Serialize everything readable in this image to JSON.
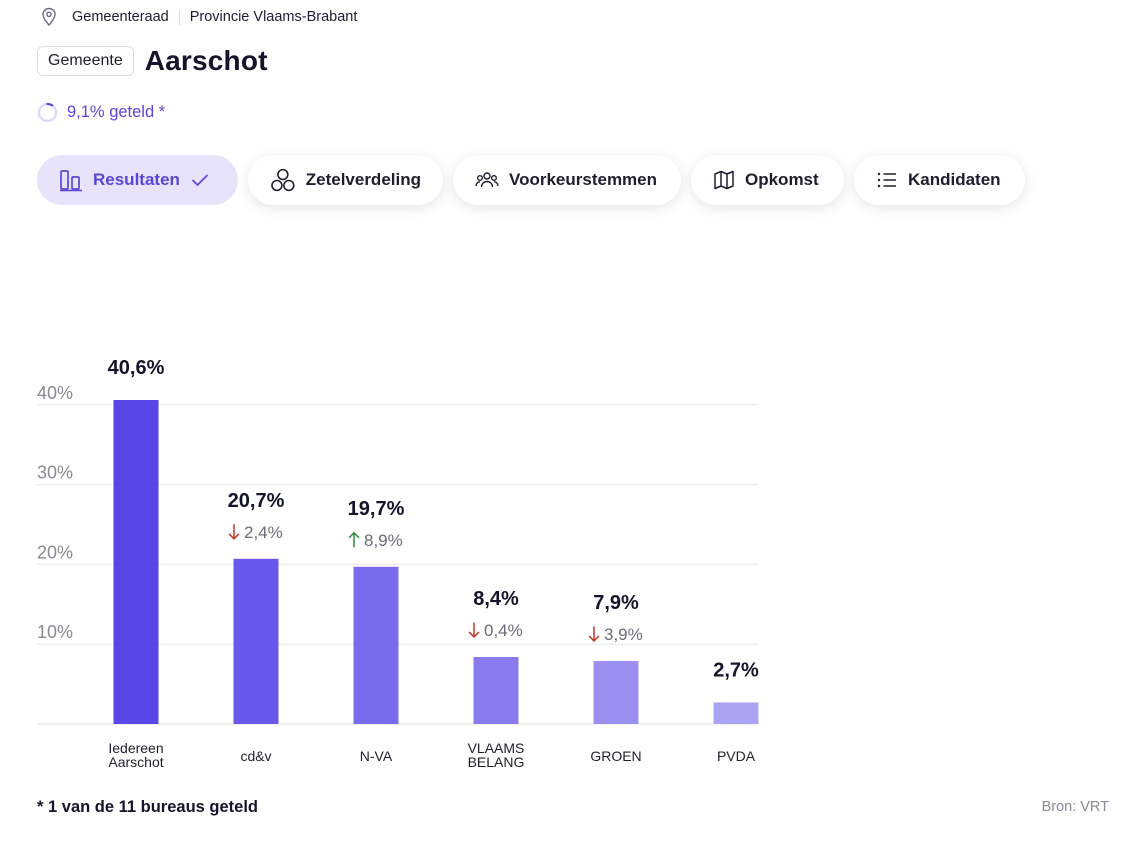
{
  "breadcrumb": {
    "pin_icon": "location-pin-icon",
    "items": [
      "Gemeenteraad",
      "Provincie Vlaams-Brabant"
    ]
  },
  "header": {
    "chip": "Gemeente",
    "title": "Aarschot"
  },
  "progress": {
    "text": "9,1% geteld *",
    "fraction": 0.091
  },
  "tabs": [
    {
      "label": "Resultaten",
      "icon": "bar-chart-icon",
      "active": true
    },
    {
      "label": "Zetelverdeling",
      "icon": "seats-icon",
      "active": false
    },
    {
      "label": "Voorkeurstemmen",
      "icon": "people-icon",
      "active": false
    },
    {
      "label": "Opkomst",
      "icon": "map-icon",
      "active": false
    },
    {
      "label": "Kandidaten",
      "icon": "list-icon",
      "active": false
    }
  ],
  "chart_data": {
    "type": "bar",
    "ylabel": "",
    "xlabel": "",
    "ylim": [
      0,
      40.6
    ],
    "ytick_labels": [
      "10%",
      "20%",
      "30%",
      "40%"
    ],
    "ytick_values": [
      10,
      20,
      30,
      40
    ],
    "grid": true,
    "categories": [
      [
        "Iedereen",
        "Aarschot"
      ],
      [
        "cd&v"
      ],
      [
        "N-VA"
      ],
      [
        "VLAAMS",
        "BELANG"
      ],
      [
        "GROEN"
      ],
      [
        "PVDA"
      ]
    ],
    "values": [
      40.6,
      20.7,
      19.7,
      8.4,
      7.9,
      2.7
    ],
    "value_labels": [
      "40,6%",
      "20,7%",
      "19,7%",
      "8,4%",
      "7,9%",
      "2,7%"
    ],
    "changes": [
      null,
      {
        "direction": "down",
        "label": "2,4%"
      },
      {
        "direction": "up",
        "label": "8,9%"
      },
      {
        "direction": "down",
        "label": "0,4%"
      },
      {
        "direction": "down",
        "label": "3,9%"
      },
      null
    ],
    "colors": [
      "#5a46e6",
      "#6a58ea",
      "#7a6aec",
      "#8a7cee",
      "#9b8ff0",
      "#aca4f2"
    ],
    "up_color": "#2e8b3e",
    "down_color": "#c0392b"
  },
  "footer": {
    "note": "* 1 van de 11 bureaus geteld",
    "source": "Bron: VRT"
  }
}
